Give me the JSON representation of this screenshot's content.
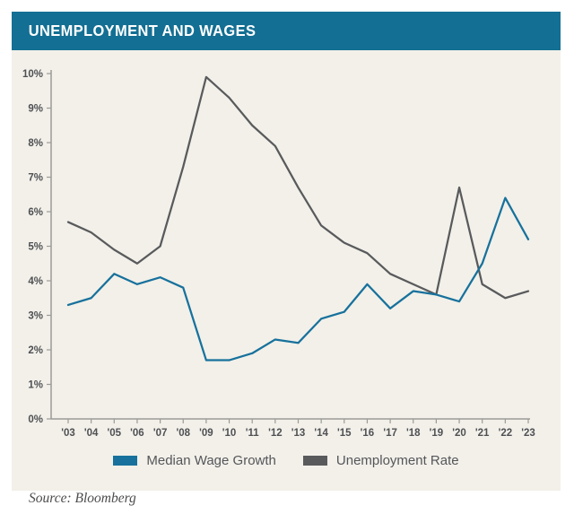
{
  "header": {
    "title": "UNEMPLOYMENT AND WAGES"
  },
  "footer": {
    "source": "Source: Bloomberg"
  },
  "colors": {
    "header_bg": "#136f93",
    "panel_bg": "#f2f0e9",
    "axis": "#9b9b97",
    "tick_label": "#4f5054",
    "wage_line": "#17719c",
    "unemployment_line": "#595a5c"
  },
  "chart_data": {
    "type": "line",
    "title": "UNEMPLOYMENT AND WAGES",
    "xlabel": "",
    "ylabel": "",
    "ylim": [
      0,
      10
    ],
    "grid": false,
    "legend_position": "bottom",
    "x_tick_labels": [
      "'03",
      "'04",
      "'05",
      "'06",
      "'07",
      "'08",
      "'09",
      "'10",
      "'11",
      "'12",
      "'13",
      "'14",
      "'15",
      "'16",
      "'17",
      "'18",
      "'19",
      "'20",
      "'21",
      "'22",
      "'23"
    ],
    "y_tick_labels": [
      "0%",
      "1%",
      "2%",
      "3%",
      "4%",
      "5%",
      "6%",
      "7%",
      "8%",
      "9%",
      "10%"
    ],
    "categories": [
      "2003",
      "2004",
      "2005",
      "2006",
      "2007",
      "2008",
      "2009",
      "2010",
      "2011",
      "2012",
      "2013",
      "2014",
      "2015",
      "2016",
      "2017",
      "2018",
      "2019",
      "2020",
      "2021",
      "2022",
      "2023"
    ],
    "series": [
      {
        "name": "Median Wage Growth",
        "color": "#17719c",
        "values": [
          3.3,
          3.5,
          4.2,
          3.9,
          4.1,
          3.8,
          1.7,
          1.7,
          1.9,
          2.3,
          2.2,
          2.9,
          3.1,
          3.9,
          3.2,
          3.7,
          3.6,
          3.4,
          4.5,
          6.4,
          5.2
        ]
      },
      {
        "name": "Unemployment Rate",
        "color": "#595a5c",
        "values": [
          5.7,
          5.4,
          4.9,
          4.5,
          5.0,
          7.3,
          9.9,
          9.3,
          8.5,
          7.9,
          6.7,
          5.6,
          5.1,
          4.8,
          4.2,
          3.9,
          3.6,
          6.7,
          3.9,
          3.5,
          3.7
        ]
      }
    ]
  }
}
